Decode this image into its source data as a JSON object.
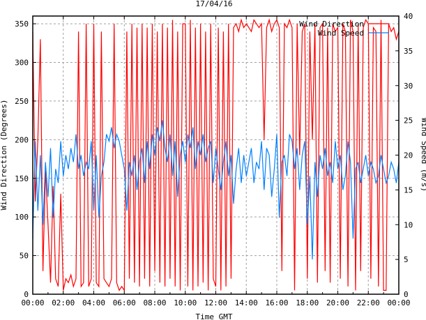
{
  "chart_data": {
    "type": "line",
    "title": "17/04/16",
    "xlabel": "Time GMT",
    "ylabel": "Wind Direction (Degrees)",
    "y2label": "Wind Speed (m/s)",
    "xlim": [
      0,
      24
    ],
    "ylim": [
      0,
      360
    ],
    "y2lim": [
      0,
      40
    ],
    "grid": true,
    "legend_position": "top-right",
    "x_ticks": [
      "00:00",
      "02:00",
      "04:00",
      "06:00",
      "08:00",
      "10:00",
      "12:00",
      "14:00",
      "16:00",
      "18:00",
      "20:00",
      "22:00",
      "00:00"
    ],
    "y_ticks": [
      "0",
      "50",
      "100",
      "150",
      "200",
      "250",
      "300",
      "350"
    ],
    "y2_ticks": [
      "0",
      "5",
      "10",
      "15",
      "20",
      "25",
      "30",
      "35",
      "40"
    ],
    "x_step_hours": 0.16667,
    "colors": {
      "direction": "#ff0000",
      "speed": "#0080ff",
      "grid": "#a0a0a0"
    },
    "series": [
      {
        "name": "Wind Direction",
        "axis": "left",
        "values": [
          340,
          120,
          200,
          330,
          30,
          160,
          90,
          15,
          140,
          20,
          10,
          130,
          5,
          20,
          15,
          25,
          10,
          20,
          340,
          10,
          15,
          350,
          10,
          20,
          350,
          15,
          10,
          340,
          20,
          15,
          10,
          20,
          350,
          15,
          5,
          10,
          5,
          340,
          20,
          350,
          15,
          345,
          10,
          350,
          20,
          345,
          10,
          350,
          30,
          340,
          15,
          350,
          10,
          345,
          20,
          355,
          10,
          340,
          5,
          350,
          350,
          10,
          355,
          5,
          345,
          10,
          350,
          15,
          340,
          5,
          350,
          20,
          10,
          345,
          5,
          340,
          10,
          350,
          20,
          345,
          350,
          340,
          355,
          345,
          350,
          345,
          340,
          355,
          350,
          345,
          350,
          200,
          345,
          355,
          340,
          350,
          355,
          345,
          30,
          350,
          345,
          355,
          345,
          5,
          350,
          180,
          340,
          350,
          20,
          340,
          200,
          350,
          15,
          345,
          350,
          30,
          345,
          15,
          350,
          340,
          345,
          20,
          350,
          340,
          10,
          355,
          340,
          5,
          350,
          30,
          345,
          355,
          350,
          20,
          345,
          340,
          10,
          355,
          5,
          5,
          350,
          340,
          345,
          330,
          340
        ]
      },
      {
        "name": "Wind Speed",
        "axis": "right",
        "values": [
          8,
          22,
          12,
          20,
          10,
          19,
          14,
          21,
          11,
          18,
          16,
          22,
          17,
          20,
          18,
          21,
          19,
          23,
          18,
          20,
          17,
          19,
          18,
          22,
          12,
          20,
          11,
          17,
          19,
          23,
          22,
          24,
          21,
          23,
          22,
          20,
          18,
          12,
          19,
          17,
          20,
          15,
          19,
          21,
          16,
          22,
          18,
          23,
          20,
          24,
          22,
          25,
          21,
          19,
          23,
          17,
          22,
          14,
          20,
          22,
          19,
          23,
          21,
          24,
          18,
          22,
          20,
          23,
          19,
          21,
          22,
          16,
          21,
          18,
          15,
          19,
          22,
          17,
          20,
          13,
          18,
          21,
          16,
          20,
          17,
          19,
          21,
          16,
          19,
          18,
          22,
          15,
          21,
          20,
          14,
          18,
          23,
          11,
          19,
          20,
          17,
          23,
          22,
          18,
          21,
          15,
          20,
          22,
          10,
          17,
          5,
          19,
          14,
          20,
          18,
          21,
          17,
          19,
          16,
          22,
          18,
          20,
          15,
          17,
          22,
          19,
          8,
          18,
          19,
          16,
          18,
          20,
          17,
          19,
          18,
          16,
          17,
          20,
          18,
          16,
          17,
          19,
          18,
          16,
          19
        ]
      }
    ]
  }
}
